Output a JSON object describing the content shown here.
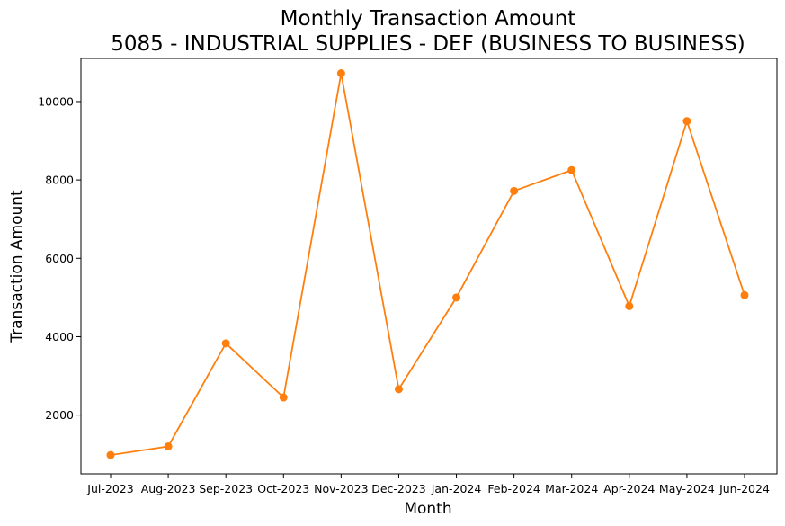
{
  "chart_data": {
    "type": "line",
    "title": "Monthly Transaction Amount",
    "subtitle": "5085 - INDUSTRIAL SUPPLIES - DEF (BUSINESS TO BUSINESS)",
    "xlabel": "Month",
    "ylabel": "Transaction Amount",
    "categories": [
      "Jul-2023",
      "Aug-2023",
      "Sep-2023",
      "Oct-2023",
      "Nov-2023",
      "Dec-2023",
      "Jan-2024",
      "Feb-2024",
      "Mar-2024",
      "Apr-2024",
      "May-2024",
      "Jun-2024"
    ],
    "series": [
      {
        "values": [
          980,
          1200,
          3830,
          2450,
          10720,
          2660,
          5000,
          7720,
          8250,
          4780,
          9500,
          5060
        ],
        "color": "#ff7f0e"
      }
    ],
    "ylim": [
      500,
      11100
    ],
    "yticks": [
      2000,
      4000,
      6000,
      8000,
      10000
    ],
    "grid": false,
    "legend": "none"
  }
}
